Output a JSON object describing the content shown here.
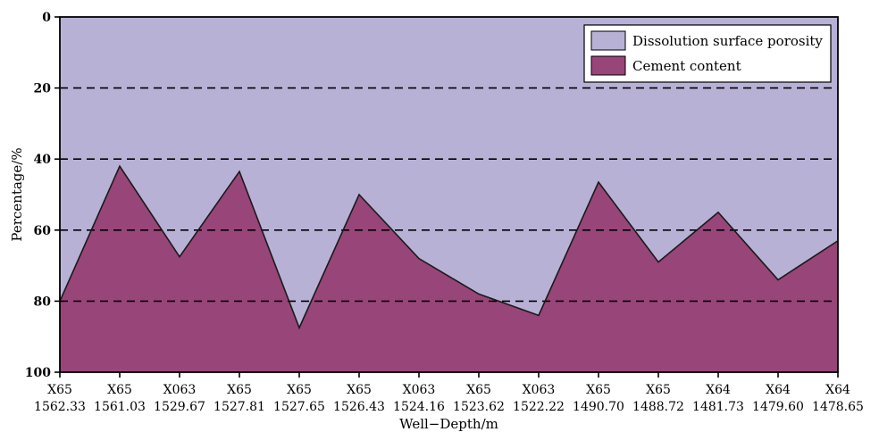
{
  "chart_data": {
    "type": "area",
    "xlabel": "Well−Depth/m",
    "ylabel": "Percentage/%",
    "ylim": [
      0,
      100
    ],
    "y_inverted": true,
    "yticks": [
      0,
      20,
      40,
      60,
      80,
      100
    ],
    "grid": "horizontal dashed at 20, 40, 60, 80",
    "legend_position": "top-right",
    "categories": [
      {
        "well": "X65",
        "depth": "1562.33"
      },
      {
        "well": "X65",
        "depth": "1561.03"
      },
      {
        "well": "X063",
        "depth": "1529.67"
      },
      {
        "well": "X65",
        "depth": "1527.81"
      },
      {
        "well": "X65",
        "depth": "1527.65"
      },
      {
        "well": "X65",
        "depth": "1526.43"
      },
      {
        "well": "X063",
        "depth": "1524.16"
      },
      {
        "well": "X65",
        "depth": "1523.62"
      },
      {
        "well": "X063",
        "depth": "1522.22"
      },
      {
        "well": "X65",
        "depth": "1490.70"
      },
      {
        "well": "X65",
        "depth": "1488.72"
      },
      {
        "well": "X64",
        "depth": "1481.73"
      },
      {
        "well": "X64",
        "depth": "1479.60"
      },
      {
        "well": "X64",
        "depth": "1478.65"
      }
    ],
    "series": [
      {
        "name": "Dissolution surface porosity",
        "color": "#b8b1d6",
        "boundary": [
          80,
          42,
          67.5,
          43.5,
          87.5,
          50,
          68,
          78,
          84,
          46.5,
          69,
          55,
          74,
          63
        ]
      },
      {
        "name": "Cement content",
        "color": "#98457a",
        "boundary": [
          80,
          42,
          67.5,
          43.5,
          87.5,
          50,
          68,
          78,
          84,
          46.5,
          69,
          55,
          74,
          63
        ]
      }
    ]
  }
}
